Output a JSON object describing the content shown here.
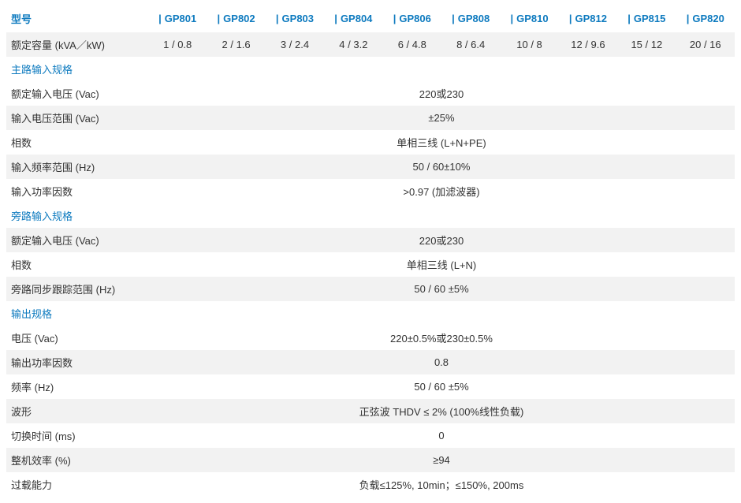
{
  "colors": {
    "header_blue": "#0d7abf",
    "text": "#333333",
    "row_alt": "#f2f2f2",
    "row_bg": "#ffffff"
  },
  "header": {
    "label": "型号",
    "models": [
      "GP801",
      "GP802",
      "GP803",
      "GP804",
      "GP806",
      "GP808",
      "GP810",
      "GP812",
      "GP815",
      "GP820"
    ]
  },
  "rows": [
    {
      "type": "data-multi",
      "label": "额定容量 (kVA／kW)",
      "values": [
        "1 / 0.8",
        "2 / 1.6",
        "3 / 2.4",
        "4 / 3.2",
        "6 / 4.8",
        "8 / 6.4",
        "10 / 8",
        "12 / 9.6",
        "15 / 12",
        "20 / 16"
      ]
    },
    {
      "type": "section",
      "label": "主路输入规格"
    },
    {
      "type": "data-span",
      "label": "额定输入电压 (Vac)",
      "value": "220或230"
    },
    {
      "type": "data-span",
      "label": "输入电压范围 (Vac)",
      "value": "±25%"
    },
    {
      "type": "data-span",
      "label": "相数",
      "value": "单相三线 (L+N+PE)"
    },
    {
      "type": "data-span",
      "label": "输入频率范围 (Hz)",
      "value": "50 / 60±10%"
    },
    {
      "type": "data-span",
      "label": "输入功率因数",
      "value": ">0.97 (加滤波器)"
    },
    {
      "type": "section",
      "label": "旁路输入规格"
    },
    {
      "type": "data-span",
      "label": "额定输入电压 (Vac)",
      "value": "220或230"
    },
    {
      "type": "data-span",
      "label": "相数",
      "value": "单相三线 (L+N)"
    },
    {
      "type": "data-span",
      "label": "旁路同步跟踪范围 (Hz)",
      "value": "50 / 60 ±5%"
    },
    {
      "type": "section",
      "label": "输出规格"
    },
    {
      "type": "data-span",
      "label": "电压 (Vac)",
      "value": "220±0.5%或230±0.5%"
    },
    {
      "type": "data-span",
      "label": "输出功率因数",
      "value": "0.8"
    },
    {
      "type": "data-span",
      "label": "频率 (Hz)",
      "value": "50 / 60 ±5%"
    },
    {
      "type": "data-span",
      "label": "波形",
      "value": "正弦波 THDV ≤ 2% (100%线性负载)"
    },
    {
      "type": "data-span",
      "label": "切换时间 (ms)",
      "value": "0"
    },
    {
      "type": "data-span",
      "label": "整机效率 (%)",
      "value": "≥94"
    },
    {
      "type": "data-span",
      "label": "过载能力",
      "value": "负载≤125%, 10min；≤150%, 200ms"
    }
  ]
}
